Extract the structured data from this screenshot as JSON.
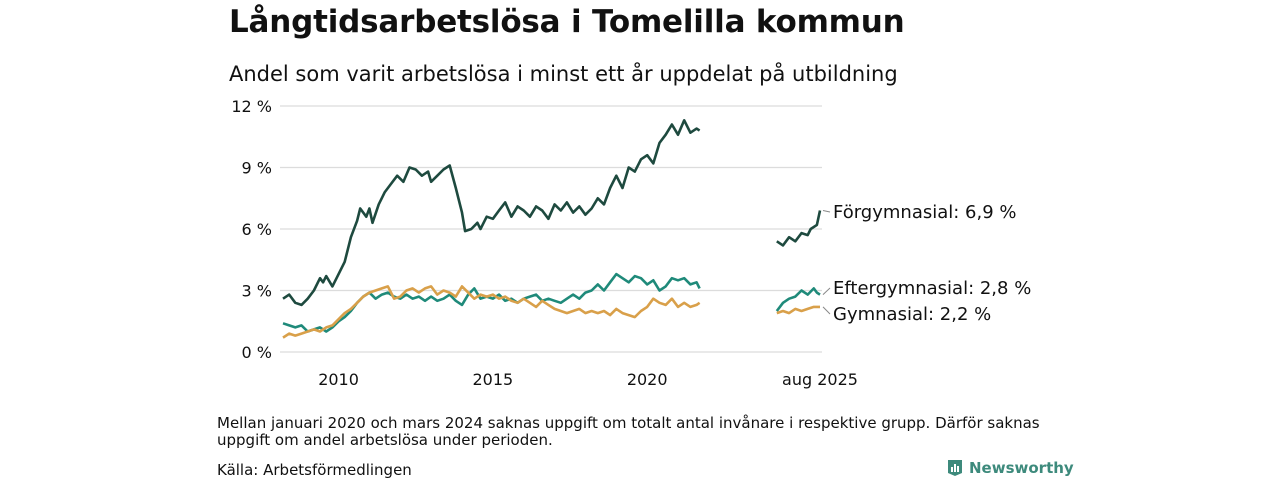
{
  "title": "Långtidsarbetslösa i Tomelilla kommun",
  "subtitle": "Andel som varit arbetslösa i minst ett år uppdelat på utbildning",
  "note": "Mellan januari 2020 och mars 2024 saknas uppgift om totalt antal invånare i respektive grupp. Därför saknas uppgift om andel arbetslösa under perioden.",
  "source": "Källa: Arbetsförmedlingen",
  "logo": {
    "text": "Newsworthy",
    "icon": "bar-chart-logo-icon",
    "color": "#3d8a7c"
  },
  "chart_data": {
    "type": "line",
    "ylim": [
      0,
      12
    ],
    "yticks": [
      0,
      3,
      6,
      9,
      12
    ],
    "ytick_labels": [
      "0 %",
      "3 %",
      "6 %",
      "9 %",
      "12 %"
    ],
    "xticks": [
      {
        "x": 2010.0,
        "label": "2010"
      },
      {
        "x": 2015.0,
        "label": "2015"
      },
      {
        "x": 2020.0,
        "label": "2020"
      },
      {
        "x": 2025.6,
        "label": "aug 2025"
      }
    ],
    "grid": true,
    "legend": "end-labels",
    "series": [
      {
        "name": "Förgymnasial",
        "end_label": "Förgymnasial: 6,9 %",
        "color": "#1e4a3f",
        "segments": [
          [
            [
              2008.2,
              2.6
            ],
            [
              2008.4,
              2.8
            ],
            [
              2008.6,
              2.4
            ],
            [
              2008.8,
              2.3
            ],
            [
              2009.0,
              2.6
            ],
            [
              2009.2,
              3.0
            ],
            [
              2009.4,
              3.6
            ],
            [
              2009.5,
              3.4
            ],
            [
              2009.6,
              3.7
            ],
            [
              2009.8,
              3.2
            ],
            [
              2010.0,
              3.8
            ],
            [
              2010.2,
              4.4
            ],
            [
              2010.4,
              5.6
            ],
            [
              2010.6,
              6.4
            ],
            [
              2010.7,
              7.0
            ],
            [
              2010.9,
              6.6
            ],
            [
              2011.0,
              7.0
            ],
            [
              2011.1,
              6.3
            ],
            [
              2011.3,
              7.2
            ],
            [
              2011.5,
              7.8
            ],
            [
              2011.7,
              8.2
            ],
            [
              2011.9,
              8.6
            ],
            [
              2012.1,
              8.3
            ],
            [
              2012.3,
              9.0
            ],
            [
              2012.5,
              8.9
            ],
            [
              2012.7,
              8.6
            ],
            [
              2012.9,
              8.8
            ],
            [
              2013.0,
              8.3
            ],
            [
              2013.2,
              8.6
            ],
            [
              2013.4,
              8.9
            ],
            [
              2013.6,
              9.1
            ],
            [
              2013.8,
              8.0
            ],
            [
              2014.0,
              6.8
            ],
            [
              2014.1,
              5.9
            ],
            [
              2014.3,
              6.0
            ],
            [
              2014.5,
              6.3
            ],
            [
              2014.6,
              6.0
            ],
            [
              2014.8,
              6.6
            ],
            [
              2015.0,
              6.5
            ],
            [
              2015.2,
              6.9
            ],
            [
              2015.4,
              7.3
            ],
            [
              2015.6,
              6.6
            ],
            [
              2015.8,
              7.1
            ],
            [
              2016.0,
              6.9
            ],
            [
              2016.2,
              6.6
            ],
            [
              2016.4,
              7.1
            ],
            [
              2016.6,
              6.9
            ],
            [
              2016.8,
              6.5
            ],
            [
              2017.0,
              7.2
            ],
            [
              2017.2,
              6.9
            ],
            [
              2017.4,
              7.3
            ],
            [
              2017.6,
              6.8
            ],
            [
              2017.8,
              7.1
            ],
            [
              2018.0,
              6.7
            ],
            [
              2018.2,
              7.0
            ],
            [
              2018.4,
              7.5
            ],
            [
              2018.6,
              7.2
            ],
            [
              2018.8,
              8.0
            ],
            [
              2019.0,
              8.6
            ],
            [
              2019.2,
              8.0
            ],
            [
              2019.4,
              9.0
            ],
            [
              2019.6,
              8.8
            ],
            [
              2019.8,
              9.4
            ],
            [
              2020.0,
              9.6
            ],
            [
              2020.2,
              9.2
            ],
            [
              2020.4,
              10.2
            ],
            [
              2020.6,
              10.6
            ],
            [
              2020.8,
              11.1
            ],
            [
              2021.0,
              10.6
            ],
            [
              2021.2,
              11.3
            ],
            [
              2021.4,
              10.7
            ],
            [
              2021.6,
              10.9
            ],
            [
              2021.7,
              10.8
            ]
          ],
          [
            [
              2024.2,
              5.4
            ],
            [
              2024.4,
              5.2
            ],
            [
              2024.6,
              5.6
            ],
            [
              2024.8,
              5.4
            ],
            [
              2025.0,
              5.8
            ],
            [
              2025.2,
              5.7
            ],
            [
              2025.3,
              6.0
            ],
            [
              2025.5,
              6.2
            ],
            [
              2025.6,
              6.9
            ]
          ]
        ]
      },
      {
        "name": "Eftergymnasial",
        "end_label": "Eftergymnasial: 2,8 %",
        "color": "#1f8a7a",
        "segments": [
          [
            [
              2008.2,
              1.4
            ],
            [
              2008.4,
              1.3
            ],
            [
              2008.6,
              1.2
            ],
            [
              2008.8,
              1.3
            ],
            [
              2009.0,
              1.0
            ],
            [
              2009.2,
              1.1
            ],
            [
              2009.4,
              1.2
            ],
            [
              2009.6,
              1.0
            ],
            [
              2009.8,
              1.2
            ],
            [
              2010.0,
              1.5
            ],
            [
              2010.2,
              1.7
            ],
            [
              2010.4,
              2.0
            ],
            [
              2010.6,
              2.4
            ],
            [
              2010.8,
              2.7
            ],
            [
              2011.0,
              2.9
            ],
            [
              2011.2,
              2.6
            ],
            [
              2011.4,
              2.8
            ],
            [
              2011.6,
              2.9
            ],
            [
              2011.8,
              2.7
            ],
            [
              2012.0,
              2.6
            ],
            [
              2012.2,
              2.8
            ],
            [
              2012.4,
              2.6
            ],
            [
              2012.6,
              2.7
            ],
            [
              2012.8,
              2.5
            ],
            [
              2013.0,
              2.7
            ],
            [
              2013.2,
              2.5
            ],
            [
              2013.4,
              2.6
            ],
            [
              2013.6,
              2.8
            ],
            [
              2013.8,
              2.5
            ],
            [
              2014.0,
              2.3
            ],
            [
              2014.2,
              2.8
            ],
            [
              2014.4,
              3.1
            ],
            [
              2014.6,
              2.6
            ],
            [
              2014.8,
              2.7
            ],
            [
              2015.0,
              2.6
            ],
            [
              2015.2,
              2.8
            ],
            [
              2015.4,
              2.5
            ],
            [
              2015.6,
              2.6
            ],
            [
              2015.8,
              2.4
            ],
            [
              2016.0,
              2.6
            ],
            [
              2016.2,
              2.7
            ],
            [
              2016.4,
              2.8
            ],
            [
              2016.6,
              2.5
            ],
            [
              2016.8,
              2.6
            ],
            [
              2017.0,
              2.5
            ],
            [
              2017.2,
              2.4
            ],
            [
              2017.4,
              2.6
            ],
            [
              2017.6,
              2.8
            ],
            [
              2017.8,
              2.6
            ],
            [
              2018.0,
              2.9
            ],
            [
              2018.2,
              3.0
            ],
            [
              2018.4,
              3.3
            ],
            [
              2018.6,
              3.0
            ],
            [
              2018.8,
              3.4
            ],
            [
              2019.0,
              3.8
            ],
            [
              2019.2,
              3.6
            ],
            [
              2019.4,
              3.4
            ],
            [
              2019.6,
              3.7
            ],
            [
              2019.8,
              3.6
            ],
            [
              2020.0,
              3.3
            ],
            [
              2020.2,
              3.5
            ],
            [
              2020.4,
              3.0
            ],
            [
              2020.6,
              3.2
            ],
            [
              2020.8,
              3.6
            ],
            [
              2021.0,
              3.5
            ],
            [
              2021.2,
              3.6
            ],
            [
              2021.4,
              3.3
            ],
            [
              2021.6,
              3.4
            ],
            [
              2021.7,
              3.1
            ]
          ],
          [
            [
              2024.2,
              2.0
            ],
            [
              2024.4,
              2.4
            ],
            [
              2024.6,
              2.6
            ],
            [
              2024.8,
              2.7
            ],
            [
              2025.0,
              3.0
            ],
            [
              2025.2,
              2.8
            ],
            [
              2025.4,
              3.1
            ],
            [
              2025.5,
              2.9
            ],
            [
              2025.6,
              2.8
            ]
          ]
        ]
      },
      {
        "name": "Gymnasial",
        "end_label": "Gymnasial: 2,2 %",
        "color": "#d9a04a",
        "segments": [
          [
            [
              2008.2,
              0.7
            ],
            [
              2008.4,
              0.9
            ],
            [
              2008.6,
              0.8
            ],
            [
              2008.8,
              0.9
            ],
            [
              2009.0,
              1.0
            ],
            [
              2009.2,
              1.1
            ],
            [
              2009.4,
              1.0
            ],
            [
              2009.6,
              1.2
            ],
            [
              2009.8,
              1.3
            ],
            [
              2010.0,
              1.6
            ],
            [
              2010.2,
              1.9
            ],
            [
              2010.4,
              2.1
            ],
            [
              2010.6,
              2.4
            ],
            [
              2010.8,
              2.7
            ],
            [
              2011.0,
              2.9
            ],
            [
              2011.2,
              3.0
            ],
            [
              2011.4,
              3.1
            ],
            [
              2011.6,
              3.2
            ],
            [
              2011.8,
              2.6
            ],
            [
              2012.0,
              2.7
            ],
            [
              2012.2,
              3.0
            ],
            [
              2012.4,
              3.1
            ],
            [
              2012.6,
              2.9
            ],
            [
              2012.8,
              3.1
            ],
            [
              2013.0,
              3.2
            ],
            [
              2013.2,
              2.8
            ],
            [
              2013.4,
              3.0
            ],
            [
              2013.6,
              2.9
            ],
            [
              2013.8,
              2.7
            ],
            [
              2014.0,
              3.2
            ],
            [
              2014.2,
              2.9
            ],
            [
              2014.4,
              2.6
            ],
            [
              2014.6,
              2.8
            ],
            [
              2014.8,
              2.7
            ],
            [
              2015.0,
              2.8
            ],
            [
              2015.2,
              2.6
            ],
            [
              2015.4,
              2.7
            ],
            [
              2015.6,
              2.5
            ],
            [
              2015.8,
              2.4
            ],
            [
              2016.0,
              2.6
            ],
            [
              2016.2,
              2.4
            ],
            [
              2016.4,
              2.2
            ],
            [
              2016.6,
              2.5
            ],
            [
              2016.8,
              2.3
            ],
            [
              2017.0,
              2.1
            ],
            [
              2017.2,
              2.0
            ],
            [
              2017.4,
              1.9
            ],
            [
              2017.6,
              2.0
            ],
            [
              2017.8,
              2.1
            ],
            [
              2018.0,
              1.9
            ],
            [
              2018.2,
              2.0
            ],
            [
              2018.4,
              1.9
            ],
            [
              2018.6,
              2.0
            ],
            [
              2018.8,
              1.8
            ],
            [
              2019.0,
              2.1
            ],
            [
              2019.2,
              1.9
            ],
            [
              2019.4,
              1.8
            ],
            [
              2019.6,
              1.7
            ],
            [
              2019.8,
              2.0
            ],
            [
              2020.0,
              2.2
            ],
            [
              2020.2,
              2.6
            ],
            [
              2020.4,
              2.4
            ],
            [
              2020.6,
              2.3
            ],
            [
              2020.8,
              2.6
            ],
            [
              2021.0,
              2.2
            ],
            [
              2021.2,
              2.4
            ],
            [
              2021.4,
              2.2
            ],
            [
              2021.6,
              2.3
            ],
            [
              2021.7,
              2.4
            ]
          ],
          [
            [
              2024.2,
              1.9
            ],
            [
              2024.4,
              2.0
            ],
            [
              2024.6,
              1.9
            ],
            [
              2024.8,
              2.1
            ],
            [
              2025.0,
              2.0
            ],
            [
              2025.2,
              2.1
            ],
            [
              2025.4,
              2.2
            ],
            [
              2025.6,
              2.2
            ]
          ]
        ]
      }
    ]
  }
}
